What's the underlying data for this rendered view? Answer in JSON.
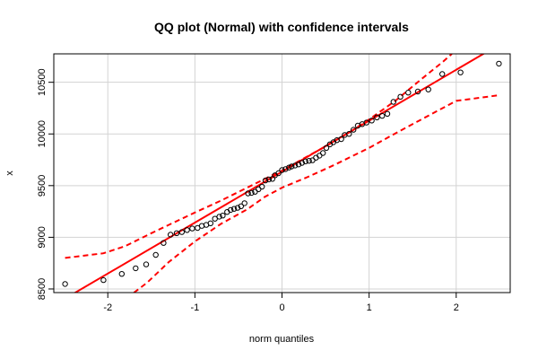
{
  "chart_data": {
    "type": "scatter",
    "title": "QQ plot (Normal) with confidence intervals",
    "xlabel": "norm quantiles",
    "ylabel": "x",
    "xlim": [
      -2.62,
      2.62
    ],
    "ylim": [
      8465,
      10775
    ],
    "xticks": [
      -2,
      -1,
      0,
      1,
      2
    ],
    "yticks": [
      8500,
      9000,
      9500,
      10000,
      10500
    ],
    "grid": true,
    "reference_line": {
      "intercept": 9635,
      "slope": 493
    },
    "points": [
      [
        -2.49,
        8548
      ],
      [
        -2.05,
        8586
      ],
      [
        -1.84,
        8646
      ],
      [
        -1.68,
        8700
      ],
      [
        -1.56,
        8738
      ],
      [
        -1.45,
        8830
      ],
      [
        -1.36,
        8945
      ],
      [
        -1.28,
        9025
      ],
      [
        -1.21,
        9040
      ],
      [
        -1.15,
        9050
      ],
      [
        -1.09,
        9070
      ],
      [
        -1.03,
        9085
      ],
      [
        -0.97,
        9090
      ],
      [
        -0.92,
        9110
      ],
      [
        -0.87,
        9120
      ],
      [
        -0.82,
        9135
      ],
      [
        -0.77,
        9180
      ],
      [
        -0.72,
        9200
      ],
      [
        -0.68,
        9210
      ],
      [
        -0.63,
        9245
      ],
      [
        -0.59,
        9265
      ],
      [
        -0.55,
        9275
      ],
      [
        -0.51,
        9285
      ],
      [
        -0.47,
        9300
      ],
      [
        -0.43,
        9330
      ],
      [
        -0.39,
        9425
      ],
      [
        -0.35,
        9430
      ],
      [
        -0.31,
        9440
      ],
      [
        -0.27,
        9465
      ],
      [
        -0.23,
        9490
      ],
      [
        -0.19,
        9550
      ],
      [
        -0.15,
        9560
      ],
      [
        -0.11,
        9565
      ],
      [
        -0.08,
        9600
      ],
      [
        -0.04,
        9620
      ],
      [
        0.0,
        9650
      ],
      [
        0.04,
        9660
      ],
      [
        0.08,
        9675
      ],
      [
        0.11,
        9685
      ],
      [
        0.15,
        9695
      ],
      [
        0.19,
        9705
      ],
      [
        0.23,
        9720
      ],
      [
        0.27,
        9735
      ],
      [
        0.31,
        9740
      ],
      [
        0.35,
        9745
      ],
      [
        0.39,
        9770
      ],
      [
        0.43,
        9790
      ],
      [
        0.47,
        9815
      ],
      [
        0.51,
        9865
      ],
      [
        0.55,
        9900
      ],
      [
        0.59,
        9920
      ],
      [
        0.63,
        9940
      ],
      [
        0.68,
        9950
      ],
      [
        0.72,
        9990
      ],
      [
        0.77,
        10000
      ],
      [
        0.82,
        10040
      ],
      [
        0.87,
        10080
      ],
      [
        0.92,
        10095
      ],
      [
        0.97,
        10110
      ],
      [
        1.03,
        10130
      ],
      [
        1.09,
        10160
      ],
      [
        1.15,
        10175
      ],
      [
        1.21,
        10195
      ],
      [
        1.28,
        10310
      ],
      [
        1.36,
        10360
      ],
      [
        1.45,
        10400
      ],
      [
        1.56,
        10410
      ],
      [
        1.68,
        10430
      ],
      [
        1.84,
        10580
      ],
      [
        2.05,
        10595
      ],
      [
        2.49,
        10680
      ]
    ],
    "confidence_interval": {
      "upper": [
        [
          -2.49,
          8800
        ],
        [
          -2.05,
          8845
        ],
        [
          -1.8,
          8915
        ],
        [
          -1.5,
          9040
        ],
        [
          -1.2,
          9160
        ],
        [
          -1.0,
          9240
        ],
        [
          -0.7,
          9355
        ],
        [
          -0.4,
          9480
        ],
        [
          -0.1,
          9605
        ],
        [
          0.0,
          9645
        ],
        [
          0.2,
          9740
        ],
        [
          0.5,
          9880
        ],
        [
          0.8,
          10030
        ],
        [
          1.0,
          10140
        ],
        [
          1.3,
          10320
        ],
        [
          1.6,
          10530
        ],
        [
          1.85,
          10700
        ],
        [
          1.95,
          10775
        ]
      ],
      "lower": [
        [
          -1.7,
          8465
        ],
        [
          -1.55,
          8560
        ],
        [
          -1.3,
          8760
        ],
        [
          -1.0,
          8960
        ],
        [
          -0.7,
          9130
        ],
        [
          -0.4,
          9270
        ],
        [
          -0.2,
          9390
        ],
        [
          0.0,
          9480
        ],
        [
          0.3,
          9585
        ],
        [
          0.6,
          9700
        ],
        [
          1.0,
          9865
        ],
        [
          1.3,
          10005
        ],
        [
          1.6,
          10140
        ],
        [
          2.0,
          10320
        ],
        [
          2.49,
          10375
        ]
      ]
    }
  }
}
